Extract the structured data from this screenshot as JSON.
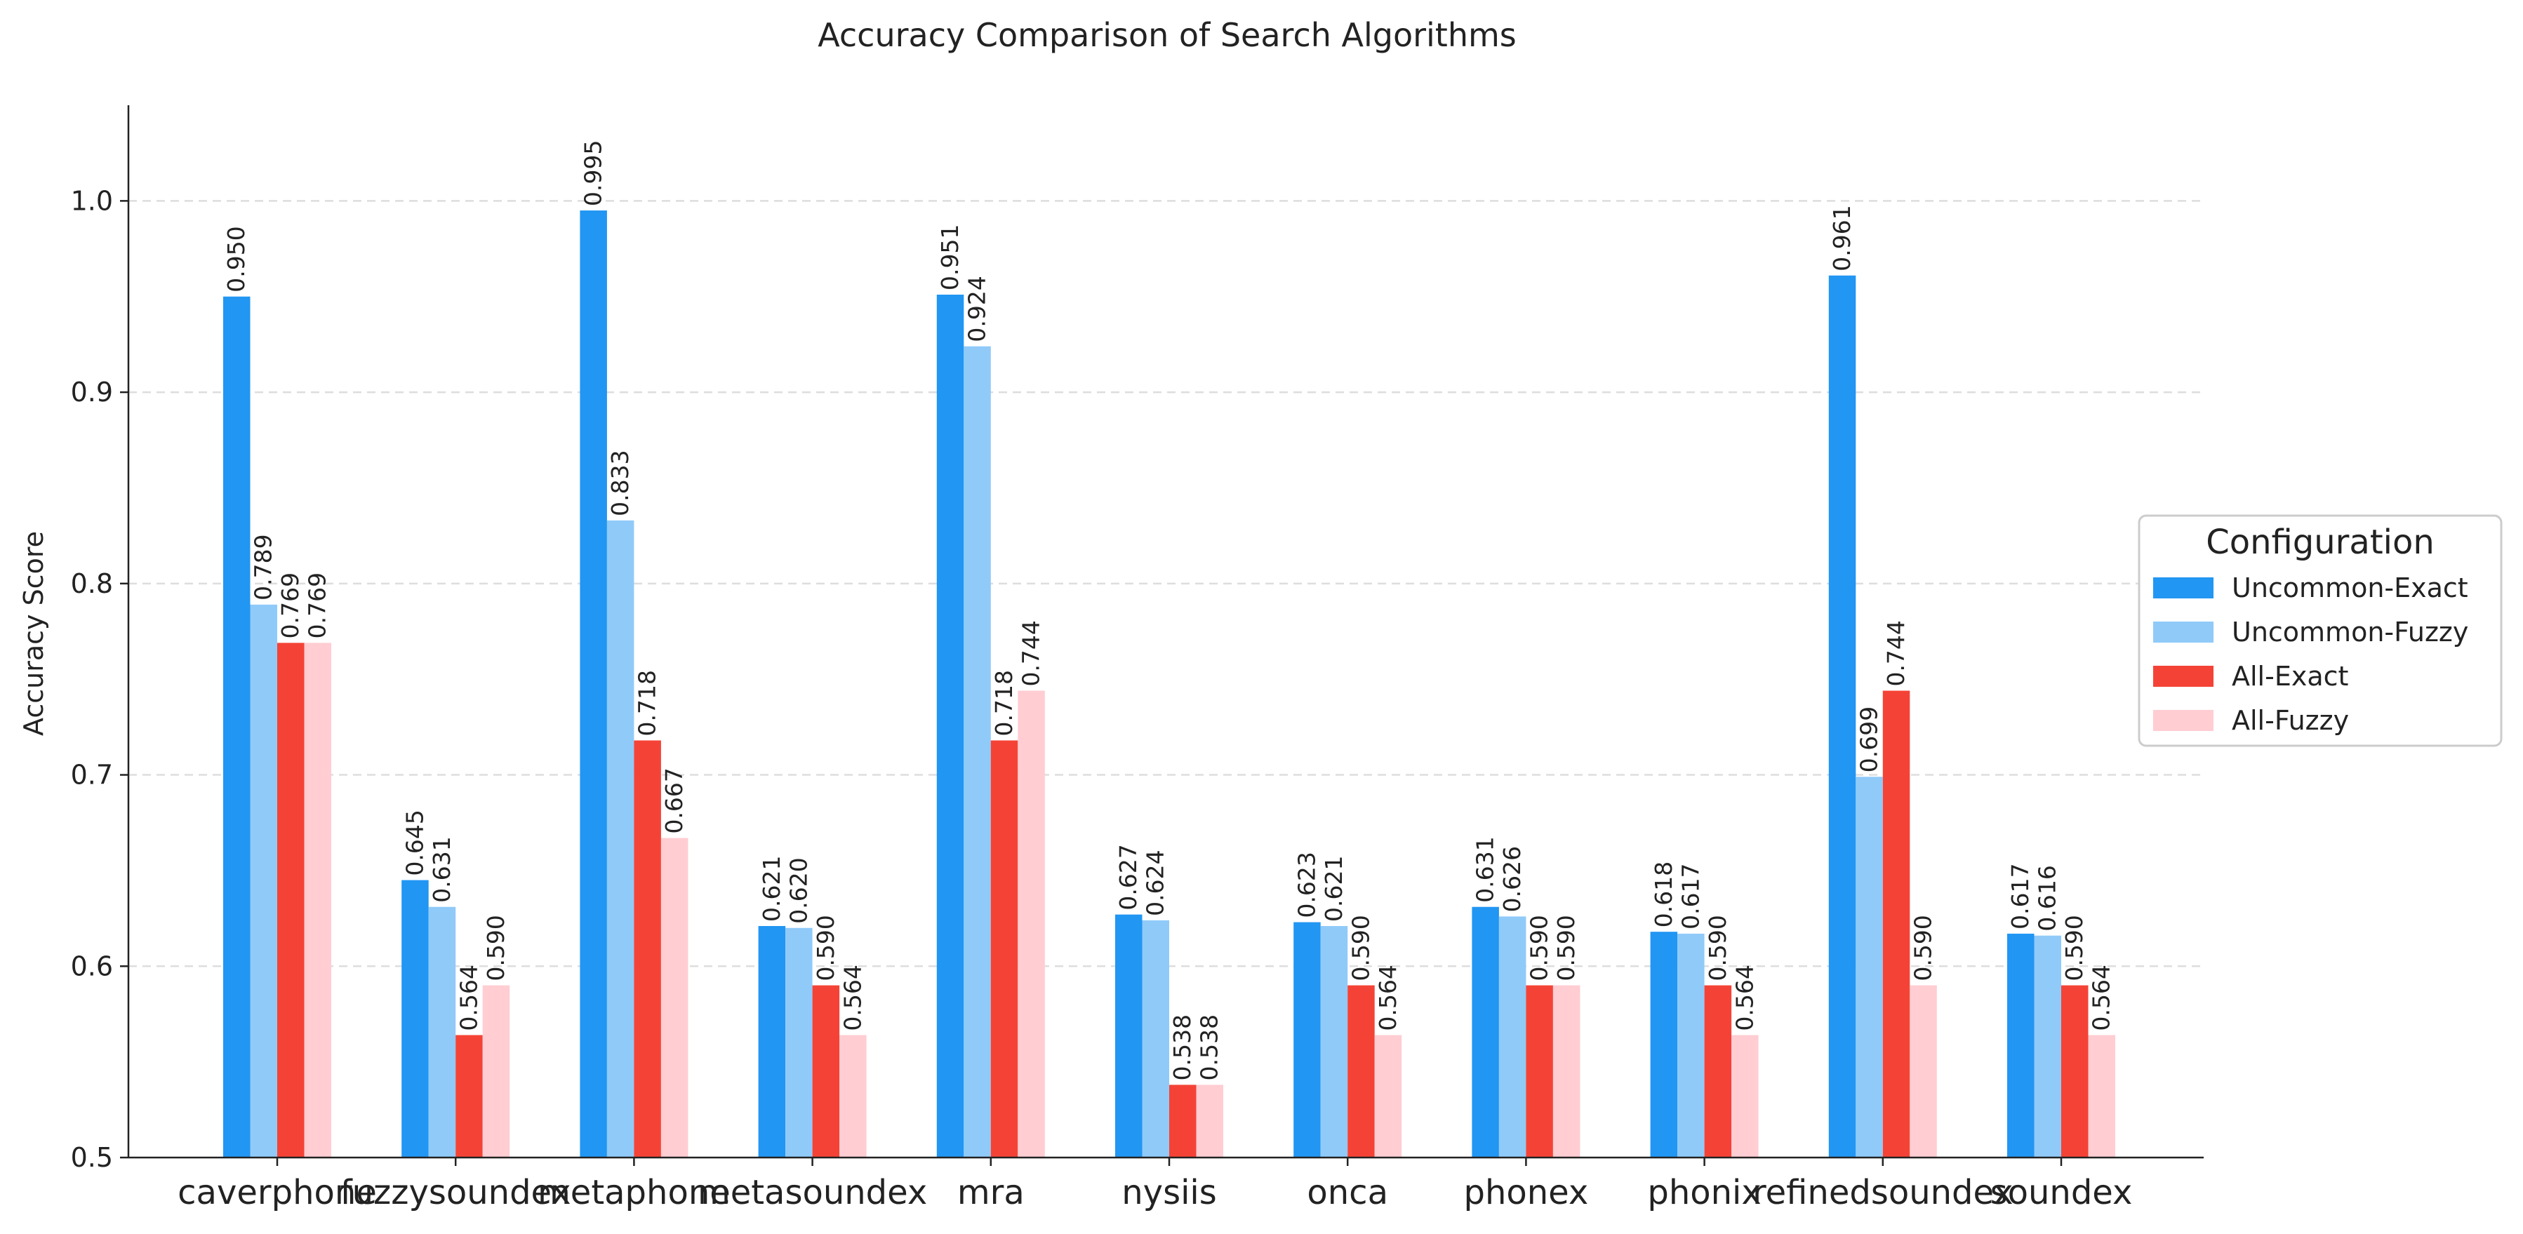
{
  "chart_data": {
    "type": "bar",
    "title": "Accuracy Comparison of Search Algorithms",
    "xlabel": "",
    "ylabel": "Accuracy Score",
    "ylim": [
      0.5,
      1.05
    ],
    "yticks": [
      "0.5",
      "0.6",
      "0.7",
      "0.8",
      "0.9",
      "1.0"
    ],
    "grid": "y-dashed",
    "legend": {
      "title": "Configuration",
      "placement": "outside-right"
    },
    "categories": [
      "caverphone",
      "fuzzysoundex",
      "metaphone",
      "metasoundex",
      "mra",
      "nysiis",
      "onca",
      "phonex",
      "phonix",
      "refinedsoundex",
      "soundex"
    ],
    "series": [
      {
        "name": "Uncommon-Exact",
        "color": "#2196F3",
        "values": [
          0.95,
          0.645,
          0.995,
          0.621,
          0.951,
          0.627,
          0.623,
          0.631,
          0.618,
          0.961,
          0.617
        ]
      },
      {
        "name": "Uncommon-Fuzzy",
        "color": "#90CAF9",
        "values": [
          0.789,
          0.631,
          0.833,
          0.62,
          0.924,
          0.624,
          0.621,
          0.626,
          0.617,
          0.699,
          0.616
        ]
      },
      {
        "name": "All-Exact",
        "color": "#F44336",
        "values": [
          0.769,
          0.564,
          0.718,
          0.59,
          0.718,
          0.538,
          0.59,
          0.59,
          0.59,
          0.744,
          0.59
        ]
      },
      {
        "name": "All-Fuzzy",
        "color": "#FFCDD2",
        "values": [
          0.769,
          0.59,
          0.667,
          0.564,
          0.744,
          0.538,
          0.564,
          0.59,
          0.564,
          0.59,
          0.564
        ]
      }
    ]
  }
}
